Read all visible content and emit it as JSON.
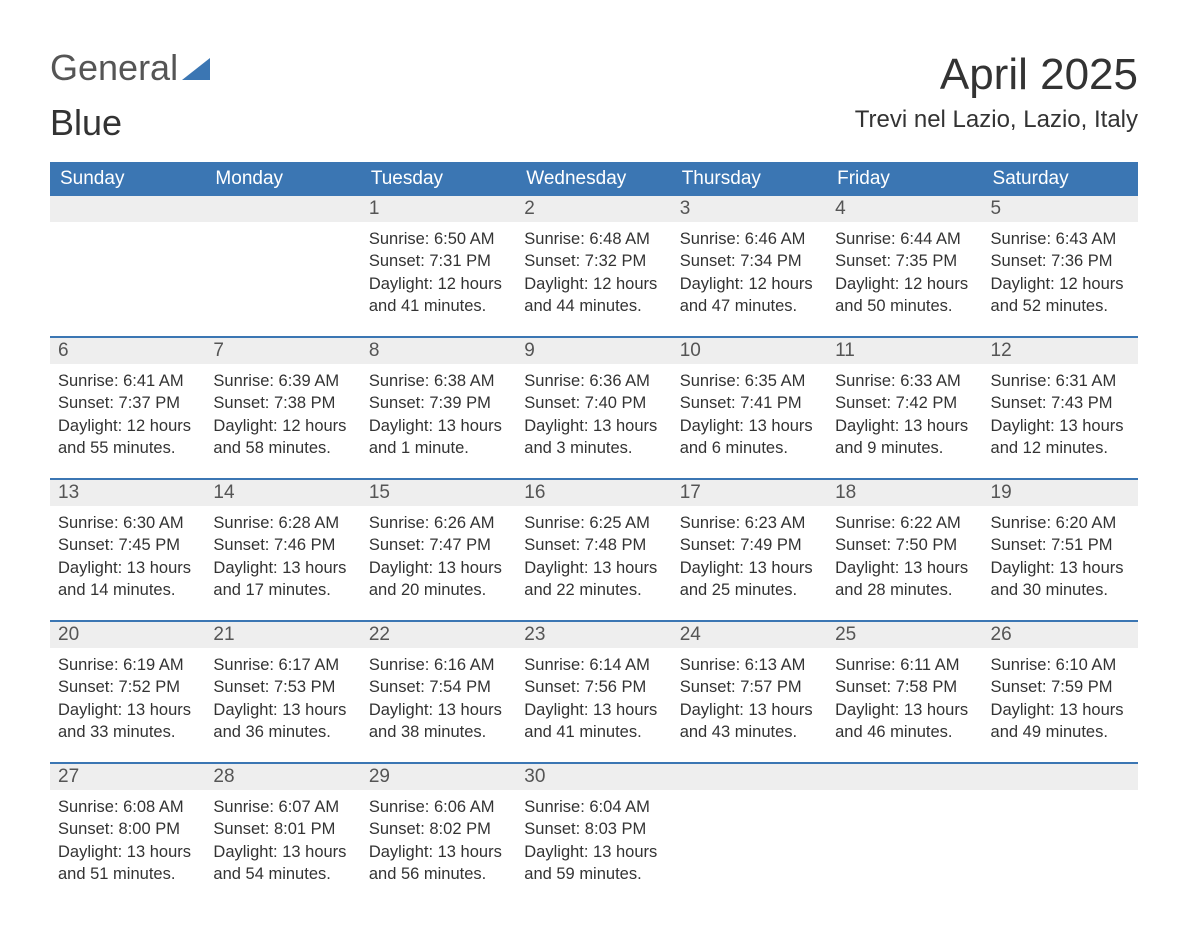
{
  "logo": {
    "word1": "General",
    "word2": "Blue",
    "color1": "#555555",
    "color2": "#2f6fad"
  },
  "title": "April 2025",
  "location": "Trevi nel Lazio, Lazio, Italy",
  "colors": {
    "header_bg": "#3b76b3",
    "header_text": "#ffffff",
    "daynum_bg": "#eeeeee",
    "daynum_text": "#555555",
    "body_text": "#333333",
    "rule": "#3b76b3",
    "page_bg": "#ffffff"
  },
  "typography": {
    "title_fontsize": 44,
    "location_fontsize": 24,
    "header_fontsize": 19,
    "daynum_fontsize": 19,
    "cell_fontsize": 16.5
  },
  "day_headers": [
    "Sunday",
    "Monday",
    "Tuesday",
    "Wednesday",
    "Thursday",
    "Friday",
    "Saturday"
  ],
  "weeks": [
    [
      null,
      null,
      {
        "n": "1",
        "sunrise": "6:50 AM",
        "sunset": "7:31 PM",
        "daylight": "12 hours and 41 minutes."
      },
      {
        "n": "2",
        "sunrise": "6:48 AM",
        "sunset": "7:32 PM",
        "daylight": "12 hours and 44 minutes."
      },
      {
        "n": "3",
        "sunrise": "6:46 AM",
        "sunset": "7:34 PM",
        "daylight": "12 hours and 47 minutes."
      },
      {
        "n": "4",
        "sunrise": "6:44 AM",
        "sunset": "7:35 PM",
        "daylight": "12 hours and 50 minutes."
      },
      {
        "n": "5",
        "sunrise": "6:43 AM",
        "sunset": "7:36 PM",
        "daylight": "12 hours and 52 minutes."
      }
    ],
    [
      {
        "n": "6",
        "sunrise": "6:41 AM",
        "sunset": "7:37 PM",
        "daylight": "12 hours and 55 minutes."
      },
      {
        "n": "7",
        "sunrise": "6:39 AM",
        "sunset": "7:38 PM",
        "daylight": "12 hours and 58 minutes."
      },
      {
        "n": "8",
        "sunrise": "6:38 AM",
        "sunset": "7:39 PM",
        "daylight": "13 hours and 1 minute."
      },
      {
        "n": "9",
        "sunrise": "6:36 AM",
        "sunset": "7:40 PM",
        "daylight": "13 hours and 3 minutes."
      },
      {
        "n": "10",
        "sunrise": "6:35 AM",
        "sunset": "7:41 PM",
        "daylight": "13 hours and 6 minutes."
      },
      {
        "n": "11",
        "sunrise": "6:33 AM",
        "sunset": "7:42 PM",
        "daylight": "13 hours and 9 minutes."
      },
      {
        "n": "12",
        "sunrise": "6:31 AM",
        "sunset": "7:43 PM",
        "daylight": "13 hours and 12 minutes."
      }
    ],
    [
      {
        "n": "13",
        "sunrise": "6:30 AM",
        "sunset": "7:45 PM",
        "daylight": "13 hours and 14 minutes."
      },
      {
        "n": "14",
        "sunrise": "6:28 AM",
        "sunset": "7:46 PM",
        "daylight": "13 hours and 17 minutes."
      },
      {
        "n": "15",
        "sunrise": "6:26 AM",
        "sunset": "7:47 PM",
        "daylight": "13 hours and 20 minutes."
      },
      {
        "n": "16",
        "sunrise": "6:25 AM",
        "sunset": "7:48 PM",
        "daylight": "13 hours and 22 minutes."
      },
      {
        "n": "17",
        "sunrise": "6:23 AM",
        "sunset": "7:49 PM",
        "daylight": "13 hours and 25 minutes."
      },
      {
        "n": "18",
        "sunrise": "6:22 AM",
        "sunset": "7:50 PM",
        "daylight": "13 hours and 28 minutes."
      },
      {
        "n": "19",
        "sunrise": "6:20 AM",
        "sunset": "7:51 PM",
        "daylight": "13 hours and 30 minutes."
      }
    ],
    [
      {
        "n": "20",
        "sunrise": "6:19 AM",
        "sunset": "7:52 PM",
        "daylight": "13 hours and 33 minutes."
      },
      {
        "n": "21",
        "sunrise": "6:17 AM",
        "sunset": "7:53 PM",
        "daylight": "13 hours and 36 minutes."
      },
      {
        "n": "22",
        "sunrise": "6:16 AM",
        "sunset": "7:54 PM",
        "daylight": "13 hours and 38 minutes."
      },
      {
        "n": "23",
        "sunrise": "6:14 AM",
        "sunset": "7:56 PM",
        "daylight": "13 hours and 41 minutes."
      },
      {
        "n": "24",
        "sunrise": "6:13 AM",
        "sunset": "7:57 PM",
        "daylight": "13 hours and 43 minutes."
      },
      {
        "n": "25",
        "sunrise": "6:11 AM",
        "sunset": "7:58 PM",
        "daylight": "13 hours and 46 minutes."
      },
      {
        "n": "26",
        "sunrise": "6:10 AM",
        "sunset": "7:59 PM",
        "daylight": "13 hours and 49 minutes."
      }
    ],
    [
      {
        "n": "27",
        "sunrise": "6:08 AM",
        "sunset": "8:00 PM",
        "daylight": "13 hours and 51 minutes."
      },
      {
        "n": "28",
        "sunrise": "6:07 AM",
        "sunset": "8:01 PM",
        "daylight": "13 hours and 54 minutes."
      },
      {
        "n": "29",
        "sunrise": "6:06 AM",
        "sunset": "8:02 PM",
        "daylight": "13 hours and 56 minutes."
      },
      {
        "n": "30",
        "sunrise": "6:04 AM",
        "sunset": "8:03 PM",
        "daylight": "13 hours and 59 minutes."
      },
      null,
      null,
      null
    ]
  ],
  "labels": {
    "sunrise": "Sunrise:",
    "sunset": "Sunset:",
    "daylight": "Daylight:"
  }
}
